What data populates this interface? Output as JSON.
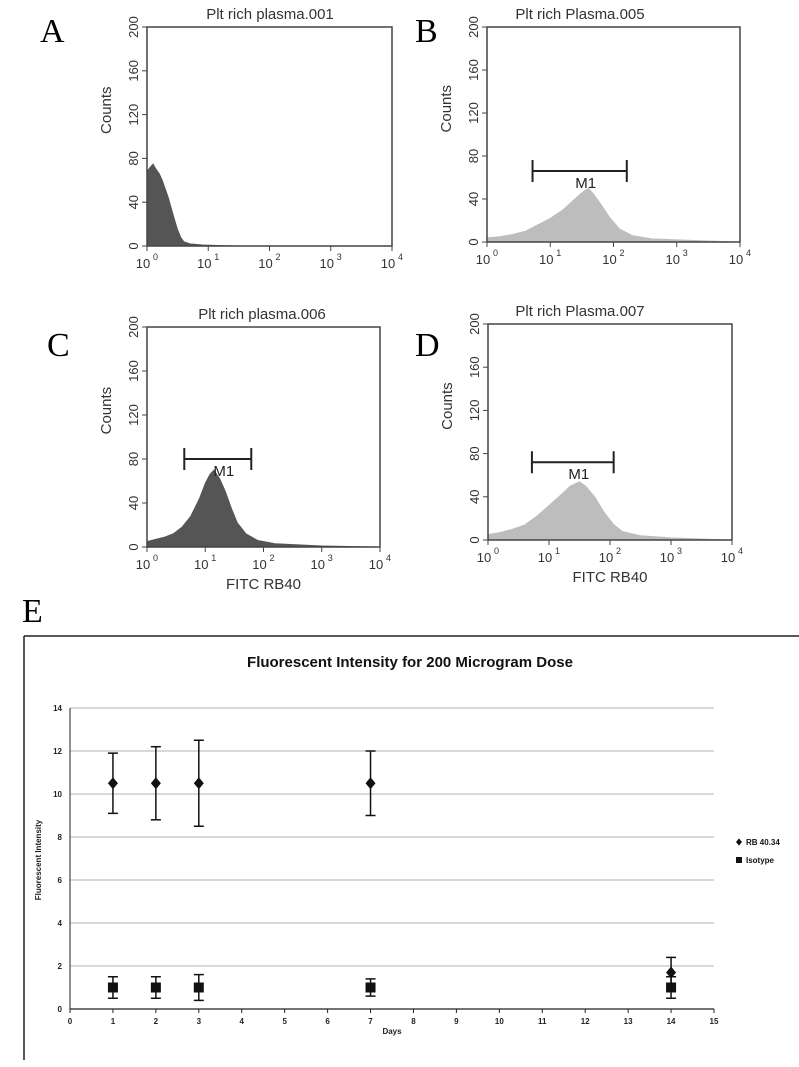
{
  "panels": [
    {
      "letter": "A",
      "title": "Plt rich plasma.001",
      "ylabel": "Counts",
      "xlabel": "",
      "fill": "#555555",
      "yticks": [
        "0",
        "40",
        "80",
        "120",
        "160",
        "200"
      ],
      "ylim": [
        0,
        200
      ],
      "xticks": [
        0,
        1,
        2,
        3,
        4
      ],
      "marker": null,
      "histogram": [
        [
          0,
          68
        ],
        [
          0.05,
          72
        ],
        [
          0.1,
          75
        ],
        [
          0.15,
          70
        ],
        [
          0.2,
          66
        ],
        [
          0.25,
          60
        ],
        [
          0.3,
          52
        ],
        [
          0.35,
          44
        ],
        [
          0.4,
          34
        ],
        [
          0.45,
          24
        ],
        [
          0.5,
          15
        ],
        [
          0.55,
          8
        ],
        [
          0.6,
          4
        ],
        [
          0.7,
          2
        ],
        [
          0.9,
          1
        ],
        [
          1.2,
          0.5
        ],
        [
          1.6,
          0
        ]
      ]
    },
    {
      "letter": "B",
      "title": "Plt rich Plasma.005",
      "ylabel": "Counts",
      "xlabel": "",
      "fill": "#bdbdbd",
      "yticks": [
        "0",
        "40",
        "80",
        "120",
        "160",
        "200"
      ],
      "ylim": [
        0,
        200
      ],
      "xticks": [
        0,
        1,
        2,
        3,
        4
      ],
      "marker": {
        "label": "M1",
        "range_log": [
          0.72,
          2.21
        ],
        "level": 66
      },
      "histogram": [
        [
          0,
          4
        ],
        [
          0.2,
          5
        ],
        [
          0.4,
          7
        ],
        [
          0.6,
          10
        ],
        [
          0.8,
          16
        ],
        [
          1.0,
          22
        ],
        [
          1.2,
          30
        ],
        [
          1.35,
          38
        ],
        [
          1.5,
          46
        ],
        [
          1.6,
          50
        ],
        [
          1.68,
          45
        ],
        [
          1.8,
          35
        ],
        [
          1.95,
          22
        ],
        [
          2.1,
          12
        ],
        [
          2.3,
          6
        ],
        [
          2.6,
          3
        ],
        [
          3.0,
          2
        ],
        [
          3.5,
          1
        ],
        [
          4.0,
          0
        ]
      ]
    },
    {
      "letter": "C",
      "title": "Plt rich plasma.006",
      "ylabel": "Counts",
      "xlabel": "FITC RB40",
      "fill": "#555555",
      "yticks": [
        "0",
        "40",
        "80",
        "120",
        "160",
        "200"
      ],
      "ylim": [
        0,
        200
      ],
      "xticks": [
        0,
        1,
        2,
        3,
        4
      ],
      "marker": {
        "label": "M1",
        "range_log": [
          0.64,
          1.79
        ],
        "level": 80
      },
      "histogram": [
        [
          0,
          5
        ],
        [
          0.15,
          7
        ],
        [
          0.3,
          9
        ],
        [
          0.45,
          12
        ],
        [
          0.6,
          18
        ],
        [
          0.75,
          28
        ],
        [
          0.9,
          44
        ],
        [
          1.0,
          58
        ],
        [
          1.08,
          66
        ],
        [
          1.15,
          70
        ],
        [
          1.25,
          62
        ],
        [
          1.35,
          50
        ],
        [
          1.45,
          35
        ],
        [
          1.55,
          22
        ],
        [
          1.7,
          12
        ],
        [
          1.9,
          6
        ],
        [
          2.2,
          3
        ],
        [
          2.6,
          2
        ],
        [
          3.0,
          1
        ],
        [
          4.0,
          0
        ]
      ]
    },
    {
      "letter": "D",
      "title": "Plt rich Plasma.007",
      "ylabel": "Counts",
      "xlabel": "FITC RB40",
      "fill": "#bdbdbd",
      "yticks": [
        "0",
        "40",
        "80",
        "120",
        "160",
        "200"
      ],
      "ylim": [
        0,
        200
      ],
      "xticks": [
        0,
        1,
        2,
        3,
        4
      ],
      "marker": {
        "label": "M1",
        "range_log": [
          0.72,
          2.06
        ],
        "level": 72
      },
      "histogram": [
        [
          0,
          5
        ],
        [
          0.2,
          7
        ],
        [
          0.4,
          10
        ],
        [
          0.6,
          14
        ],
        [
          0.8,
          22
        ],
        [
          1.0,
          32
        ],
        [
          1.2,
          42
        ],
        [
          1.35,
          50
        ],
        [
          1.5,
          54
        ],
        [
          1.6,
          50
        ],
        [
          1.75,
          40
        ],
        [
          1.9,
          26
        ],
        [
          2.05,
          15
        ],
        [
          2.2,
          8
        ],
        [
          2.5,
          4
        ],
        [
          3.0,
          2
        ],
        [
          3.5,
          1
        ],
        [
          4.0,
          0
        ]
      ]
    }
  ],
  "panel_e": {
    "letter": "E",
    "chart_data": {
      "type": "scatter",
      "title": "Fluorescent Intensity for 200 Microgram Dose",
      "xlabel": "Days",
      "ylabel": "Fluorescent Intensity",
      "xlim": [
        0,
        15
      ],
      "ylim": [
        0,
        14
      ],
      "xticks": [
        "0",
        "1",
        "2",
        "3",
        "4",
        "5",
        "6",
        "7",
        "8",
        "9",
        "10",
        "11",
        "12",
        "13",
        "14",
        "15"
      ],
      "yticks": [
        "0",
        "2",
        "4",
        "6",
        "8",
        "10",
        "12",
        "14"
      ],
      "grid": true,
      "legend_position": "right",
      "series": [
        {
          "name": "RB 40.34",
          "marker": "diamond",
          "points": [
            {
              "x": 1,
              "y": 10.5,
              "err_low": 9.1,
              "err_high": 11.9
            },
            {
              "x": 2,
              "y": 10.5,
              "err_low": 8.8,
              "err_high": 12.2
            },
            {
              "x": 3,
              "y": 10.5,
              "err_low": 8.5,
              "err_high": 12.5
            },
            {
              "x": 7,
              "y": 10.5,
              "err_low": 9.0,
              "err_high": 12.0
            },
            {
              "x": 14,
              "y": 1.7,
              "err_low": 1.0,
              "err_high": 2.4
            }
          ]
        },
        {
          "name": "Isotype",
          "marker": "square",
          "points": [
            {
              "x": 1,
              "y": 1.0,
              "err_low": 0.5,
              "err_high": 1.5
            },
            {
              "x": 2,
              "y": 1.0,
              "err_low": 0.5,
              "err_high": 1.5
            },
            {
              "x": 3,
              "y": 1.0,
              "err_low": 0.4,
              "err_high": 1.6
            },
            {
              "x": 7,
              "y": 1.0,
              "err_low": 0.6,
              "err_high": 1.4
            },
            {
              "x": 14,
              "y": 1.0,
              "err_low": 0.5,
              "err_high": 1.5
            }
          ]
        }
      ]
    }
  }
}
